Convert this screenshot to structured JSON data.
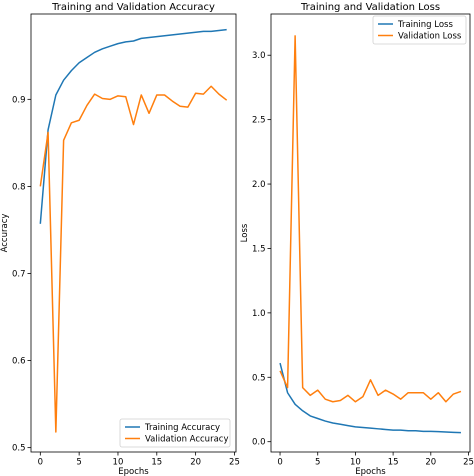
{
  "chart_data": [
    {
      "type": "line",
      "title": "Training and Validation Accuracy",
      "xlabel": "Epochs",
      "ylabel": "Accuracy",
      "xlim": [
        -1.2,
        25.2
      ],
      "ylim": [
        0.495,
        0.998
      ],
      "xticks": [
        0,
        5,
        10,
        15,
        20,
        25
      ],
      "yticks": [
        0.5,
        0.6,
        0.7,
        0.8,
        0.9
      ],
      "ytick_format": 1,
      "legend": "lower-right",
      "x": [
        0,
        1,
        2,
        3,
        4,
        5,
        6,
        7,
        8,
        9,
        10,
        11,
        12,
        13,
        14,
        15,
        16,
        17,
        18,
        19,
        20,
        21,
        22,
        23,
        24
      ],
      "series": [
        {
          "name": "Training Accuracy",
          "color": "#1f77b4",
          "values": [
            0.757,
            0.865,
            0.905,
            0.922,
            0.933,
            0.942,
            0.948,
            0.954,
            0.958,
            0.961,
            0.964,
            0.966,
            0.967,
            0.97,
            0.971,
            0.972,
            0.973,
            0.974,
            0.975,
            0.976,
            0.977,
            0.978,
            0.978,
            0.979,
            0.98
          ]
        },
        {
          "name": "Validation Accuracy",
          "color": "#ff7f0e",
          "values": [
            0.8,
            0.862,
            0.518,
            0.853,
            0.873,
            0.876,
            0.893,
            0.906,
            0.901,
            0.9,
            0.904,
            0.903,
            0.871,
            0.905,
            0.884,
            0.905,
            0.905,
            0.898,
            0.892,
            0.891,
            0.907,
            0.906,
            0.915,
            0.906,
            0.899
          ]
        }
      ]
    },
    {
      "type": "line",
      "title": "Training and Validation Loss",
      "xlabel": "Epochs",
      "ylabel": "Loss",
      "xlim": [
        -1.2,
        25.2
      ],
      "ylim": [
        -0.08,
        3.32
      ],
      "xticks": [
        0,
        5,
        10,
        15,
        20,
        25
      ],
      "yticks": [
        0.0,
        0.5,
        1.0,
        1.5,
        2.0,
        2.5,
        3.0
      ],
      "ytick_format": 1,
      "legend": "top-right",
      "x": [
        0,
        1,
        2,
        3,
        4,
        5,
        6,
        7,
        8,
        9,
        10,
        11,
        12,
        13,
        14,
        15,
        16,
        17,
        18,
        19,
        20,
        21,
        22,
        23,
        24
      ],
      "series": [
        {
          "name": "Training Loss",
          "color": "#1f77b4",
          "values": [
            0.61,
            0.38,
            0.29,
            0.24,
            0.2,
            0.18,
            0.16,
            0.145,
            0.135,
            0.125,
            0.115,
            0.11,
            0.105,
            0.1,
            0.095,
            0.09,
            0.09,
            0.085,
            0.085,
            0.08,
            0.08,
            0.078,
            0.075,
            0.072,
            0.07
          ]
        },
        {
          "name": "Validation Loss",
          "color": "#ff7f0e",
          "values": [
            0.55,
            0.42,
            3.15,
            0.42,
            0.36,
            0.4,
            0.33,
            0.31,
            0.32,
            0.36,
            0.31,
            0.35,
            0.48,
            0.36,
            0.4,
            0.37,
            0.33,
            0.38,
            0.38,
            0.38,
            0.33,
            0.38,
            0.31,
            0.37,
            0.39
          ]
        }
      ]
    }
  ]
}
